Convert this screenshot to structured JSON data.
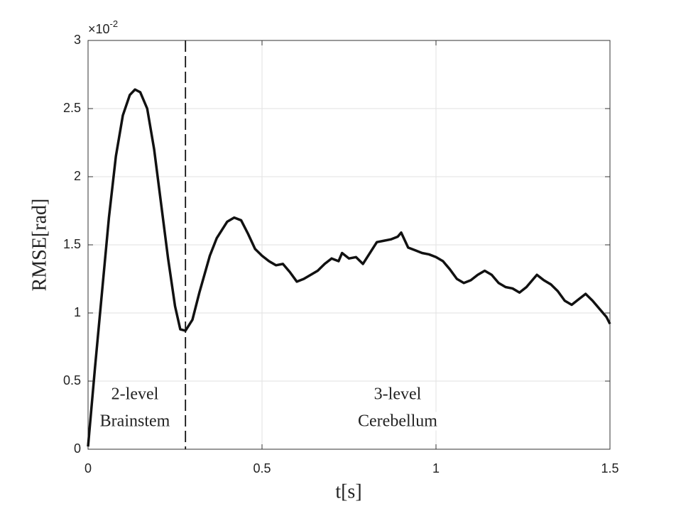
{
  "chart_data": {
    "type": "line",
    "x_label": "t[s]",
    "y_label": "RMSE[rad]",
    "y_exponent": {
      "base": "×10",
      "power": "-2"
    },
    "x": [
      0,
      0.02,
      0.04,
      0.06,
      0.08,
      0.1,
      0.12,
      0.135,
      0.15,
      0.17,
      0.19,
      0.21,
      0.23,
      0.25,
      0.265,
      0.28,
      0.3,
      0.32,
      0.35,
      0.37,
      0.4,
      0.42,
      0.44,
      0.46,
      0.48,
      0.5,
      0.52,
      0.54,
      0.56,
      0.58,
      0.6,
      0.62,
      0.64,
      0.66,
      0.68,
      0.7,
      0.72,
      0.73,
      0.75,
      0.77,
      0.79,
      0.81,
      0.83,
      0.85,
      0.87,
      0.89,
      0.9,
      0.92,
      0.94,
      0.96,
      0.98,
      1.0,
      1.02,
      1.04,
      1.06,
      1.08,
      1.1,
      1.12,
      1.14,
      1.16,
      1.18,
      1.2,
      1.22,
      1.24,
      1.26,
      1.28,
      1.29,
      1.31,
      1.33,
      1.35,
      1.37,
      1.39,
      1.41,
      1.43,
      1.45,
      1.47,
      1.49,
      1.5
    ],
    "series": [
      {
        "color": "#111111",
        "values": [
          0.02,
          0.6,
          1.15,
          1.7,
          2.15,
          2.45,
          2.6,
          2.64,
          2.62,
          2.5,
          2.2,
          1.8,
          1.4,
          1.05,
          0.88,
          0.87,
          0.95,
          1.15,
          1.42,
          1.55,
          1.67,
          1.7,
          1.68,
          1.58,
          1.47,
          1.42,
          1.38,
          1.35,
          1.36,
          1.3,
          1.23,
          1.25,
          1.28,
          1.31,
          1.36,
          1.4,
          1.38,
          1.44,
          1.4,
          1.41,
          1.36,
          1.44,
          1.52,
          1.53,
          1.54,
          1.56,
          1.59,
          1.48,
          1.46,
          1.44,
          1.43,
          1.41,
          1.38,
          1.32,
          1.25,
          1.22,
          1.24,
          1.28,
          1.31,
          1.28,
          1.22,
          1.19,
          1.18,
          1.15,
          1.19,
          1.25,
          1.28,
          1.24,
          1.21,
          1.16,
          1.09,
          1.06,
          1.1,
          1.14,
          1.09,
          1.03,
          0.97,
          0.92
        ]
      }
    ],
    "divider_x": 0.28,
    "annotations": [
      [
        "2-level",
        "Brainstem"
      ],
      [
        "3-level",
        "Cerebellum"
      ]
    ],
    "xlim": [
      0,
      1.5
    ],
    "xticks": [
      0,
      0.5,
      1,
      1.5
    ],
    "ylim": [
      0,
      3
    ],
    "yticks": [
      0,
      0.5,
      1,
      1.5,
      2,
      2.5,
      3
    ],
    "grid": true
  }
}
